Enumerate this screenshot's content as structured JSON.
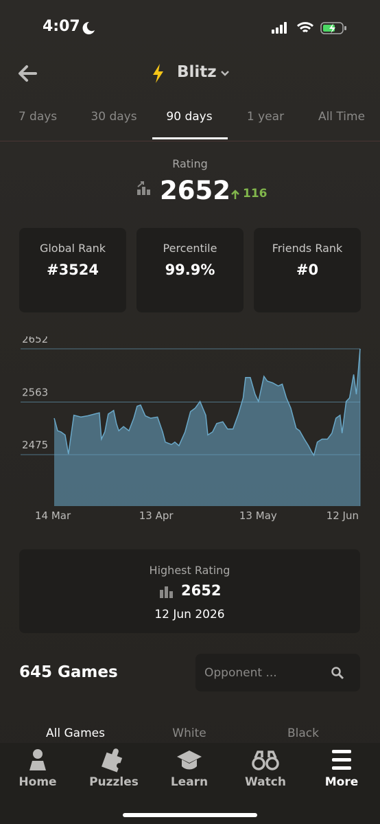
{
  "status": {
    "time": "4:07"
  },
  "header": {
    "title": "Blitz"
  },
  "tabs": [
    "7 days",
    "30 days",
    "90 days",
    "1 year",
    "All Time"
  ],
  "rating": {
    "label": "Rating",
    "value": "2652",
    "change": "116"
  },
  "stats": [
    {
      "label": "Global Rank",
      "value": "#3524"
    },
    {
      "label": "Percentile",
      "value": "99.9%"
    },
    {
      "label": "Friends Rank",
      "value": "#0"
    }
  ],
  "chart_data": {
    "type": "area",
    "x": [
      0,
      1.0,
      2.0,
      3.2,
      4.2,
      5.8,
      7.9,
      9.9,
      11.9,
      13.3,
      13.9,
      14.9,
      15.9,
      17.5,
      18.3,
      19.0,
      20.4,
      22.0,
      23.4,
      24.4,
      25.4,
      26.8,
      28.4,
      30.4,
      31.9,
      32.7,
      34.5,
      35.5,
      36.7,
      38.5,
      40.1,
      41.5,
      42.9,
      44.6,
      45.2,
      46.6,
      47.8,
      49.6,
      51.0,
      52.6,
      54.2,
      55.6,
      56.3,
      57.7,
      59.1,
      60.1,
      61.7,
      62.7,
      64.3,
      65.9,
      67.1,
      68.3,
      69.6,
      71.2,
      72.2,
      73.6,
      74.8,
      75.8,
      76.4,
      77.4,
      78.8,
      80.4,
      81.7,
      82.9,
      84.1,
      84.7,
      85.9,
      86.9,
      88.1,
      88.9,
      90
    ],
    "values": [
      2536,
      2515,
      2513,
      2508,
      2476,
      2541,
      2538,
      2540,
      2543,
      2545,
      2501,
      2513,
      2543,
      2549,
      2527,
      2515,
      2522,
      2515,
      2536,
      2556,
      2558,
      2540,
      2536,
      2538,
      2513,
      2496,
      2492,
      2496,
      2490,
      2513,
      2547,
      2553,
      2564,
      2541,
      2508,
      2513,
      2527,
      2530,
      2518,
      2518,
      2543,
      2570,
      2604,
      2604,
      2576,
      2564,
      2606,
      2598,
      2595,
      2590,
      2593,
      2570,
      2553,
      2519,
      2515,
      2501,
      2490,
      2479,
      2474,
      2496,
      2501,
      2501,
      2511,
      2536,
      2541,
      2511,
      2564,
      2570,
      2609,
      2576,
      2652
    ],
    "color": "#6aa8c8",
    "xlim": [
      0,
      90
    ],
    "xticks": [
      {
        "value": 0,
        "label": "14 Mar"
      },
      {
        "value": 30,
        "label": "13 Apr"
      },
      {
        "value": 60,
        "label": "13 May"
      },
      {
        "value": 90,
        "label": "12 Jun"
      }
    ],
    "ylim": [
      2389,
      2652
    ],
    "yticks": [
      2652,
      2563,
      2475
    ],
    "grid": true
  },
  "highest": {
    "label": "Highest Rating",
    "value": "2652",
    "date": "12 Jun 2026"
  },
  "games": {
    "title": "645 Games",
    "search_placeholder": "Opponent ..."
  },
  "game_tabs": [
    "All Games",
    "White",
    "Black"
  ],
  "nav": [
    "Home",
    "Puzzles",
    "Learn",
    "Watch",
    "More"
  ]
}
